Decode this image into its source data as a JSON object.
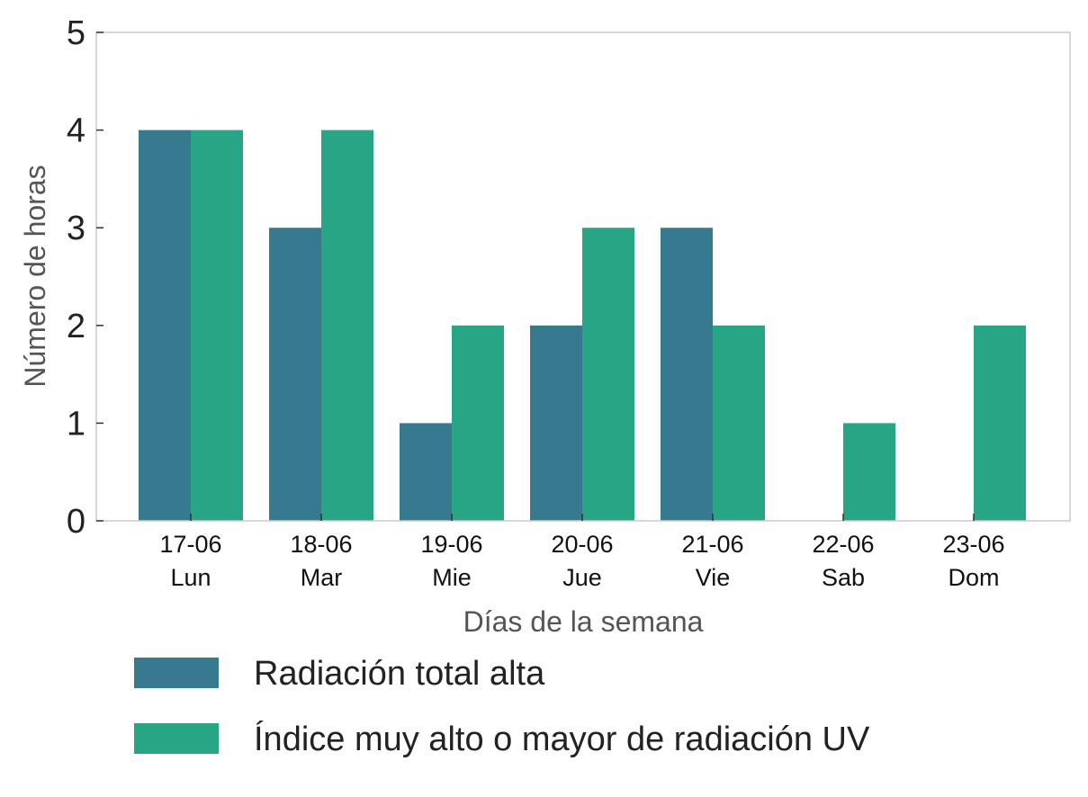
{
  "chart_data": {
    "type": "bar",
    "categories": [
      [
        "17-06",
        "Lun"
      ],
      [
        "18-06",
        "Mar"
      ],
      [
        "19-06",
        "Mie"
      ],
      [
        "20-06",
        "Jue"
      ],
      [
        "21-06",
        "Vie"
      ],
      [
        "22-06",
        "Sab"
      ],
      [
        "23-06",
        "Dom"
      ]
    ],
    "series": [
      {
        "name": "Radiación total alta",
        "color": "#37798f",
        "values": [
          4,
          3,
          1,
          2,
          3,
          0,
          0
        ]
      },
      {
        "name": "Índice muy alto o mayor de radiación UV",
        "color": "#27a584",
        "values": [
          4,
          4,
          2,
          3,
          2,
          1,
          2
        ]
      }
    ],
    "xlabel": "Días de la semana",
    "ylabel": "Número de horas",
    "ylim": [
      0,
      5
    ],
    "yticks": [
      0,
      1,
      2,
      3,
      4,
      5
    ],
    "grid": false,
    "legend_position": "bottom"
  }
}
